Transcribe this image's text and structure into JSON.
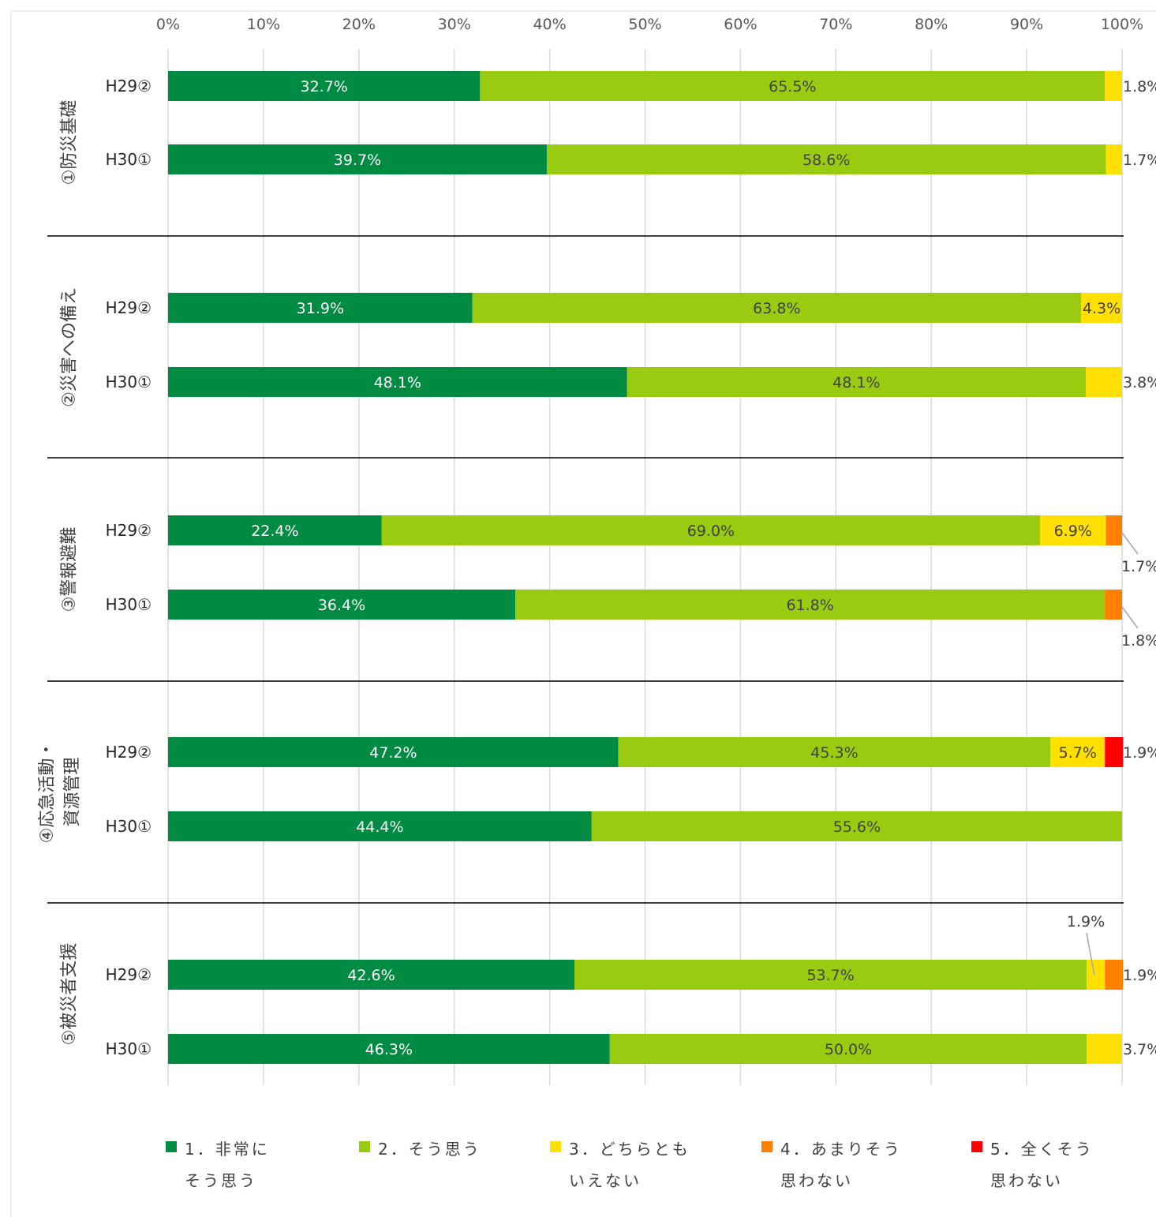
{
  "chart_data": {
    "type": "bar",
    "orientation": "horizontal",
    "stacked": "percent",
    "xlim": [
      0,
      100
    ],
    "x_ticks": [
      "0%",
      "10%",
      "20%",
      "30%",
      "40%",
      "50%",
      "60%",
      "70%",
      "80%",
      "90%",
      "100%"
    ],
    "grid": true,
    "legend_position": "bottom",
    "colors": [
      "#008a42",
      "#99cc11",
      "#ffe000",
      "#ff8000",
      "#ff0000"
    ],
    "series": [
      {
        "name": "1．非常に\nそう思う"
      },
      {
        "name": "2．そう思う"
      },
      {
        "name": "3．どちらとも\nいえない"
      },
      {
        "name": "4．あまりそう\n思わない"
      },
      {
        "name": "5．全くそう\n思わない"
      }
    ],
    "groups": [
      {
        "label": "①防災基礎",
        "rows": [
          {
            "label": "H29②",
            "values": [
              32.7,
              65.5,
              1.8,
              0,
              0
            ],
            "labels": [
              "32.7%",
              "65.5%",
              "1.8%",
              "",
              ""
            ]
          },
          {
            "label": "H30①",
            "values": [
              39.7,
              58.6,
              1.7,
              0,
              0
            ],
            "labels": [
              "39.7%",
              "58.6%",
              "1.7%",
              "",
              ""
            ]
          }
        ]
      },
      {
        "label": "②災害への備え",
        "rows": [
          {
            "label": "H29②",
            "values": [
              31.9,
              63.8,
              4.3,
              0,
              0
            ],
            "labels": [
              "31.9%",
              "63.8%",
              "4.3%",
              "",
              ""
            ]
          },
          {
            "label": "H30①",
            "values": [
              48.1,
              48.1,
              3.8,
              0,
              0
            ],
            "labels": [
              "48.1%",
              "48.1%",
              "3.8%",
              "",
              ""
            ]
          }
        ]
      },
      {
        "label": "③警報避難",
        "rows": [
          {
            "label": "H29②",
            "values": [
              22.4,
              69.0,
              6.9,
              1.7,
              0
            ],
            "labels": [
              "22.4%",
              "69.0%",
              "6.9%",
              "1.7%",
              ""
            ]
          },
          {
            "label": "H30①",
            "values": [
              36.4,
              61.8,
              0,
              1.8,
              0
            ],
            "labels": [
              "36.4%",
              "61.8%",
              "",
              "1.8%",
              ""
            ]
          }
        ]
      },
      {
        "label": "④応急活動・\n資源管理",
        "rows": [
          {
            "label": "H29②",
            "values": [
              47.2,
              45.3,
              5.7,
              0,
              1.9
            ],
            "labels": [
              "47.2%",
              "45.3%",
              "5.7%",
              "",
              "1.9%"
            ]
          },
          {
            "label": "H30①",
            "values": [
              44.4,
              55.6,
              0,
              0,
              0
            ],
            "labels": [
              "44.4%",
              "55.6%",
              "",
              "",
              ""
            ]
          }
        ]
      },
      {
        "label": "⑤被災者支援",
        "rows": [
          {
            "label": "H29②",
            "values": [
              42.6,
              53.7,
              1.9,
              1.9,
              0
            ],
            "labels": [
              "42.6%",
              "53.7%",
              "1.9%",
              "1.9%",
              ""
            ]
          },
          {
            "label": "H30①",
            "values": [
              46.3,
              50.0,
              3.7,
              0,
              0
            ],
            "labels": [
              "46.3%",
              "50.0%",
              "3.7%",
              "",
              ""
            ]
          }
        ]
      }
    ]
  }
}
